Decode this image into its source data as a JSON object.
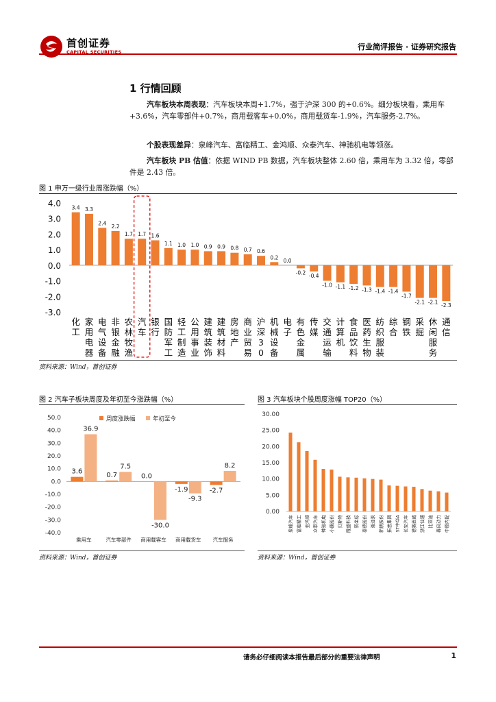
{
  "header": {
    "company_cn": "首创证券",
    "company_en": "CAPITAL SECURITIES",
    "report_type": "行业简评报告 · 证券研究报告"
  },
  "section": {
    "title": "1 行情回顾",
    "p1_label": "汽车板块本周表现",
    "p1_text": "：汽车板块本周+1.7%，强于沪深 300 的+0.6%。细分板块看，乘用车+3.6%，汽车零部件+0.7%，商用载客车+0.0%，商用载货车-1.9%，汽车服务-2.7%。",
    "p2_label": "个股表现差异",
    "p2_text": "：泉峰汽车、富临精工、金鸿顺、众泰汽车、神驰机电等领涨。",
    "p3_label": "汽车板块 PB 估值",
    "p3_text": "：依据 WIND PB 数据，汽车板块整体 2.60 倍，乘用车为 3.32 倍，零部件是 2.43 倍。"
  },
  "fig1": {
    "title": "图 1 申万一级行业周涨跌幅（%）",
    "source": "资料来源：Wind，首创证券"
  },
  "fig2": {
    "title": "图 2 汽车子板块周度及年初至今涨跌幅（%）",
    "source": "资料来源：Wind，首创证券"
  },
  "fig3": {
    "title": "图 3 汽车板块个股周度涨幅 TOP20（%）",
    "source": "资料来源：Wind，首创证券"
  },
  "chart_data": [
    {
      "type": "bar",
      "categories": [
        "化工",
        "家用电器",
        "电气设备",
        "非银金融",
        "农林牧渔",
        "汽车",
        "银行",
        "国防军工",
        "轻工制造",
        "公用事业",
        "建筑装饰",
        "建筑材料",
        "房地产",
        "商业贸易",
        "沪深300",
        "机械设备",
        "电子",
        "有色金属",
        "传媒",
        "交通运输",
        "计算机",
        "食品饮料",
        "医药生物",
        "纺织服装",
        "综合",
        "钢铁",
        "采掘",
        "休闲服务",
        "通信"
      ],
      "values": [
        3.4,
        3.3,
        2.4,
        2.2,
        1.7,
        1.7,
        1.6,
        1.1,
        1.0,
        1.0,
        0.9,
        0.9,
        0.8,
        0.7,
        0.6,
        0.2,
        0.0,
        -0.2,
        -0.4,
        -1.0,
        -1.1,
        -1.2,
        -1.3,
        -1.4,
        -1.4,
        -1.7,
        -2.1,
        -2.1,
        -2.3
      ],
      "ylim": [
        -3.0,
        4.0
      ],
      "yticks": [
        "4.0",
        "3.0",
        "2.0",
        "1.0",
        "0.0",
        "-1.0",
        "-2.0",
        "-3.0"
      ],
      "highlight": "汽车",
      "color": "#ed7d31"
    },
    {
      "type": "bar",
      "categories": [
        "乘用车",
        "汽车零部件",
        "商用载客车",
        "商用载货车",
        "汽车服务"
      ],
      "series": [
        {
          "name": "周度涨跌幅",
          "values": [
            3.6,
            0.7,
            0.0,
            -1.9,
            -2.7
          ],
          "color": "#ed7d31"
        },
        {
          "name": "年初至今",
          "values": [
            36.9,
            7.5,
            -30.0,
            -9.3,
            8.2
          ],
          "color": "#f4b183"
        }
      ],
      "value_labels": [
        [
          "3.6",
          "0.7",
          "0.0",
          "-1.9",
          "-2.7"
        ],
        [
          "36.9",
          "7.5",
          "-30.0",
          "-9.3",
          "8.2"
        ]
      ],
      "ylim": [
        -40.0,
        50.0
      ],
      "yticks": [
        "50.0",
        "40.0",
        "30.0",
        "20.0",
        "10.0",
        "0.0",
        "-10.0",
        "-20.0",
        "-30.0",
        "-40.0"
      ],
      "legend": "top"
    },
    {
      "type": "bar",
      "categories": [
        "泉峰汽车",
        "富临精工",
        "金鸿顺",
        "众泰汽车",
        "神驰机电",
        "小康股份",
        "贝斯特",
        "隆盛科技",
        "新坐标",
        "泰德股份",
        "湘油泵",
        "新朋股份",
        "拓普集团",
        "ST中华A",
        "长安汽车",
        "德赛西威",
        "浙江仙通",
        "比亚迪",
        "春风动力",
        "中原内配"
      ],
      "values": [
        24.3,
        21.3,
        18.6,
        15.9,
        13.1,
        12.9,
        10.7,
        10.5,
        10.4,
        10.2,
        10.0,
        9.8,
        8.0,
        7.9,
        7.7,
        7.6,
        6.9,
        6.4,
        6.2,
        5.8
      ],
      "ylim": [
        0,
        30
      ],
      "yticks": [
        "30.00",
        "25.00",
        "20.00",
        "15.00",
        "10.00",
        "5.00",
        "0.00"
      ],
      "color": "#ed7d31"
    }
  ],
  "footer": {
    "notice": "请务必仔细阅读本报告最后部分的重要法律声明",
    "page": "1"
  }
}
